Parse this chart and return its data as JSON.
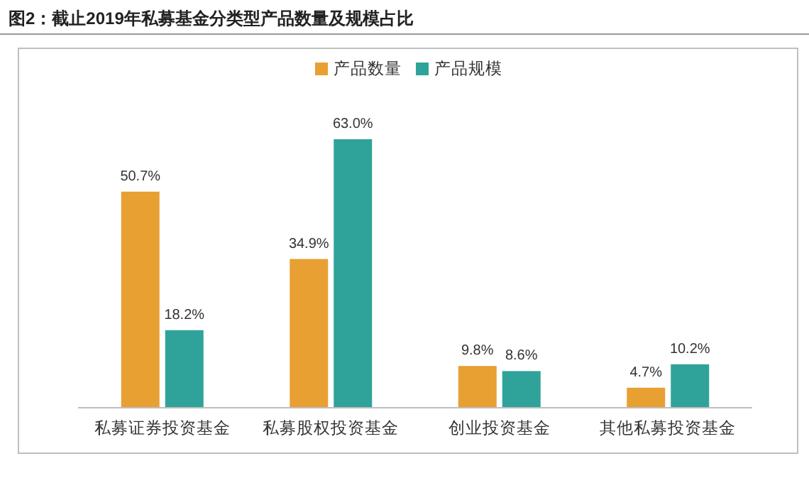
{
  "chart_data": {
    "type": "bar",
    "title": "图2：截止2019年私募基金分类型产品数量及规模占比",
    "categories": [
      "私募证券投资基金",
      "私募股权投资基金",
      "创业投资基金",
      "其他私募投资基金"
    ],
    "series": [
      {
        "name": "产品数量",
        "color": "#e8a033",
        "values": [
          50.7,
          34.9,
          9.8,
          4.7
        ],
        "value_labels": [
          "50.7%",
          "34.9%",
          "9.8%",
          "4.7%"
        ]
      },
      {
        "name": "产品规模",
        "color": "#2fa39a",
        "values": [
          18.2,
          63.0,
          8.6,
          10.2
        ],
        "value_labels": [
          "18.2%",
          "63.0%",
          "8.6%",
          "10.2%"
        ]
      }
    ],
    "legend": "top"
  }
}
